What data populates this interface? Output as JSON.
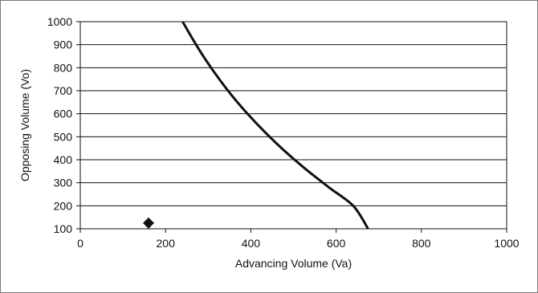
{
  "chart_data": {
    "type": "scatter",
    "title": "",
    "xlabel": "Advancing Volume (Va)",
    "ylabel": "Opposing Volume (Vo)",
    "xlim": [
      0,
      1000
    ],
    "ylim": [
      100,
      1000
    ],
    "x_ticks": [
      0,
      200,
      400,
      600,
      800,
      1000
    ],
    "y_ticks": [
      100,
      200,
      300,
      400,
      500,
      600,
      700,
      800,
      900,
      1000
    ],
    "grid": "horizontal",
    "legend": "none",
    "series": [
      {
        "type": "line",
        "color": "#111111",
        "points": [
          {
            "x": 240,
            "y": 1000
          },
          {
            "x": 265,
            "y": 920
          },
          {
            "x": 292,
            "y": 840
          },
          {
            "x": 322,
            "y": 760
          },
          {
            "x": 355,
            "y": 680
          },
          {
            "x": 392,
            "y": 600
          },
          {
            "x": 433,
            "y": 520
          },
          {
            "x": 478,
            "y": 440
          },
          {
            "x": 528,
            "y": 360
          },
          {
            "x": 583,
            "y": 280
          },
          {
            "x": 640,
            "y": 200
          },
          {
            "x": 675,
            "y": 100
          }
        ]
      },
      {
        "type": "scatter",
        "marker": "diamond",
        "color": "#111111",
        "points": [
          {
            "x": 160,
            "y": 125
          }
        ]
      }
    ]
  }
}
